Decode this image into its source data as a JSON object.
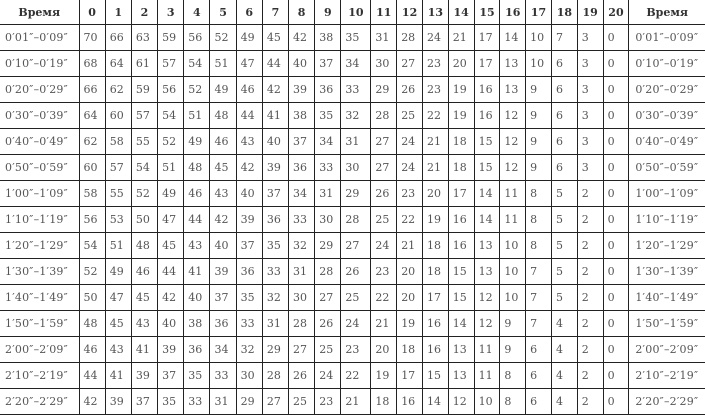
{
  "header": {
    "time_label": "Время",
    "columns": [
      "0",
      "1",
      "2",
      "3",
      "4",
      "5",
      "6",
      "7",
      "8",
      "9",
      "10",
      "11",
      "12",
      "13",
      "14",
      "15",
      "16",
      "17",
      "18",
      "19",
      "20"
    ],
    "time_label_right": "Время"
  },
  "rows": [
    {
      "time": "0′01″–0′09″",
      "values": [
        70,
        66,
        63,
        59,
        56,
        52,
        49,
        45,
        42,
        38,
        35,
        31,
        28,
        24,
        21,
        17,
        14,
        10,
        7,
        3,
        0
      ]
    },
    {
      "time": "0′10″–0′19″",
      "values": [
        68,
        64,
        61,
        57,
        54,
        51,
        47,
        44,
        40,
        37,
        34,
        30,
        27,
        23,
        20,
        17,
        13,
        10,
        6,
        3,
        0
      ]
    },
    {
      "time": "0′20″–0′29″",
      "values": [
        66,
        62,
        59,
        56,
        52,
        49,
        46,
        42,
        39,
        36,
        33,
        29,
        26,
        23,
        19,
        16,
        13,
        9,
        6,
        3,
        0
      ]
    },
    {
      "time": "0′30″–0′39″",
      "values": [
        64,
        60,
        57,
        54,
        51,
        48,
        44,
        41,
        38,
        35,
        32,
        28,
        25,
        22,
        19,
        16,
        12,
        9,
        6,
        3,
        0
      ]
    },
    {
      "time": "0′40″–0′49″",
      "values": [
        62,
        58,
        55,
        52,
        49,
        46,
        43,
        40,
        37,
        34,
        31,
        27,
        24,
        21,
        18,
        15,
        12,
        9,
        6,
        3,
        0
      ]
    },
    {
      "time": "0′50″–0′59″",
      "values": [
        60,
        57,
        54,
        51,
        48,
        45,
        42,
        39,
        36,
        33,
        30,
        27,
        24,
        21,
        18,
        15,
        12,
        9,
        6,
        3,
        0
      ]
    },
    {
      "time": "1′00″–1′09″",
      "values": [
        58,
        55,
        52,
        49,
        46,
        43,
        40,
        37,
        34,
        31,
        29,
        26,
        23,
        20,
        17,
        14,
        11,
        8,
        5,
        2,
        0
      ]
    },
    {
      "time": "1′10″–1′19″",
      "values": [
        56,
        53,
        50,
        47,
        44,
        42,
        39,
        36,
        33,
        30,
        28,
        25,
        22,
        19,
        16,
        14,
        11,
        8,
        5,
        2,
        0
      ]
    },
    {
      "time": "1′20″–1′29″",
      "values": [
        54,
        51,
        48,
        45,
        43,
        40,
        37,
        35,
        32,
        29,
        27,
        24,
        21,
        18,
        16,
        13,
        10,
        8,
        5,
        2,
        0
      ]
    },
    {
      "time": "1′30″–1′39″",
      "values": [
        52,
        49,
        46,
        44,
        41,
        39,
        36,
        33,
        31,
        28,
        26,
        23,
        20,
        18,
        15,
        13,
        10,
        7,
        5,
        2,
        0
      ]
    },
    {
      "time": "1′40″–1′49″",
      "values": [
        50,
        47,
        45,
        42,
        40,
        37,
        35,
        32,
        30,
        27,
        25,
        22,
        20,
        17,
        15,
        12,
        10,
        7,
        5,
        2,
        0
      ]
    },
    {
      "time": "1′50″–1′59″",
      "values": [
        48,
        45,
        43,
        40,
        38,
        36,
        33,
        31,
        28,
        26,
        24,
        21,
        19,
        16,
        14,
        12,
        9,
        7,
        4,
        2,
        0
      ]
    },
    {
      "time": "2′00″–2′09″",
      "values": [
        46,
        43,
        41,
        39,
        36,
        34,
        32,
        29,
        27,
        25,
        23,
        20,
        18,
        16,
        13,
        11,
        9,
        6,
        4,
        2,
        0
      ]
    },
    {
      "time": "2′10″–2′19″",
      "values": [
        44,
        41,
        39,
        37,
        35,
        33,
        30,
        28,
        26,
        24,
        22,
        19,
        17,
        15,
        13,
        11,
        8,
        6,
        4,
        2,
        0
      ]
    },
    {
      "time": "2′20″–2′29″",
      "values": [
        42,
        39,
        37,
        35,
        33,
        31,
        29,
        27,
        25,
        23,
        21,
        18,
        16,
        14,
        12,
        10,
        8,
        6,
        4,
        2,
        0
      ]
    }
  ]
}
